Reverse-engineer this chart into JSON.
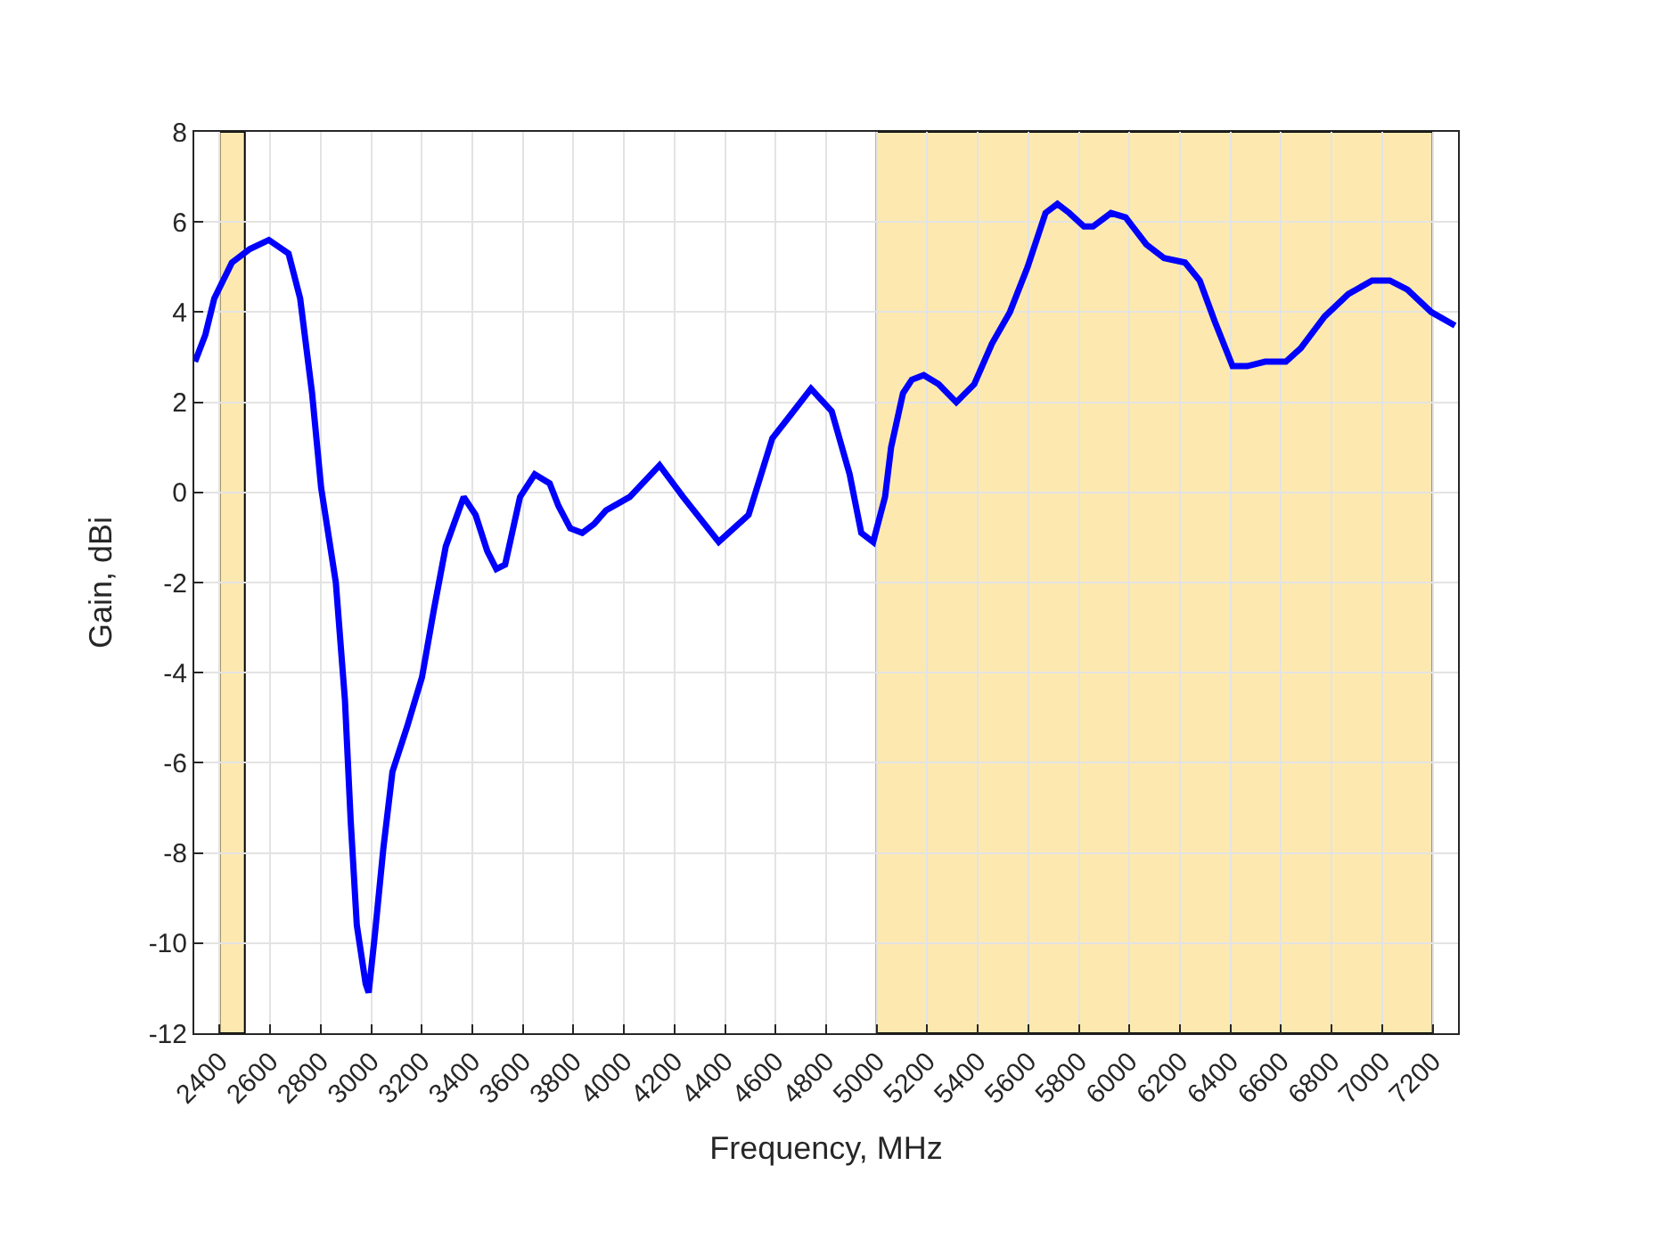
{
  "chart_data": {
    "type": "line",
    "xlabel": "Frequency, MHz",
    "ylabel": "Gain, dBi",
    "xlim": [
      2300,
      7300
    ],
    "xticks": [
      2400,
      2600,
      2800,
      3000,
      3200,
      3400,
      3600,
      3800,
      4000,
      4200,
      4400,
      4600,
      4800,
      5000,
      5200,
      5400,
      5600,
      5800,
      6000,
      6200,
      6400,
      6600,
      6800,
      7000,
      7200
    ],
    "ylim": [
      -12,
      8
    ],
    "yticks": [
      -12,
      -10,
      -8,
      -6,
      -4,
      -2,
      0,
      2,
      4,
      6,
      8
    ],
    "grid": true,
    "marker": "none",
    "line_style": "solid",
    "bands": [
      {
        "axis": "x",
        "from": 2400,
        "to": 2500,
        "color": "#fde9b0"
      },
      {
        "axis": "x",
        "from": 5000,
        "to": 7200,
        "color": "#fde9b0"
      }
    ],
    "series": [
      {
        "color": "#0000ff",
        "x": [
          2303,
          2344,
          2379,
          2449,
          2520,
          2595,
          2673,
          2719,
          2766,
          2802,
          2860,
          2896,
          2919,
          2943,
          2978,
          2990,
          3013,
          3048,
          3084,
          3142,
          3201,
          3248,
          3295,
          3366,
          3413,
          3459,
          3495,
          3530,
          3589,
          3647,
          3706,
          3741,
          3788,
          3835,
          3882,
          3929,
          4023,
          4141,
          4234,
          4375,
          4493,
          4587,
          4657,
          4740,
          4822,
          4893,
          4939,
          4986,
          5033,
          5057,
          5104,
          5139,
          5186,
          5245,
          5315,
          5386,
          5456,
          5527,
          5597,
          5668,
          5715,
          5762,
          5820,
          5856,
          5927,
          5985,
          6067,
          6137,
          6220,
          6278,
          6337,
          6408,
          6466,
          6537,
          6619,
          6678,
          6772,
          6866,
          6960,
          7030,
          7100,
          7194,
          7288
        ],
        "values": [
          2.9,
          3.5,
          4.3,
          5.1,
          5.4,
          5.6,
          5.3,
          4.3,
          2.2,
          0.1,
          -2.0,
          -4.6,
          -7.3,
          -9.6,
          -10.9,
          -11.1,
          -9.9,
          -7.9,
          -6.2,
          -5.2,
          -4.1,
          -2.6,
          -1.2,
          -0.1,
          -0.5,
          -1.3,
          -1.7,
          -1.6,
          -0.1,
          0.4,
          0.2,
          -0.3,
          -0.8,
          -0.9,
          -0.7,
          -0.4,
          -0.1,
          0.6,
          -0.1,
          -1.1,
          -0.5,
          1.2,
          1.7,
          2.3,
          1.8,
          0.4,
          -0.9,
          -1.1,
          -0.1,
          1.0,
          2.2,
          2.5,
          2.6,
          2.4,
          2.0,
          2.4,
          3.3,
          4.0,
          5.0,
          6.2,
          6.4,
          6.2,
          5.9,
          5.9,
          6.2,
          6.1,
          5.5,
          5.2,
          5.1,
          4.7,
          3.8,
          2.8,
          2.8,
          2.9,
          2.9,
          3.2,
          3.9,
          4.4,
          4.7,
          4.7,
          4.5,
          4.0,
          3.7
        ]
      }
    ]
  }
}
